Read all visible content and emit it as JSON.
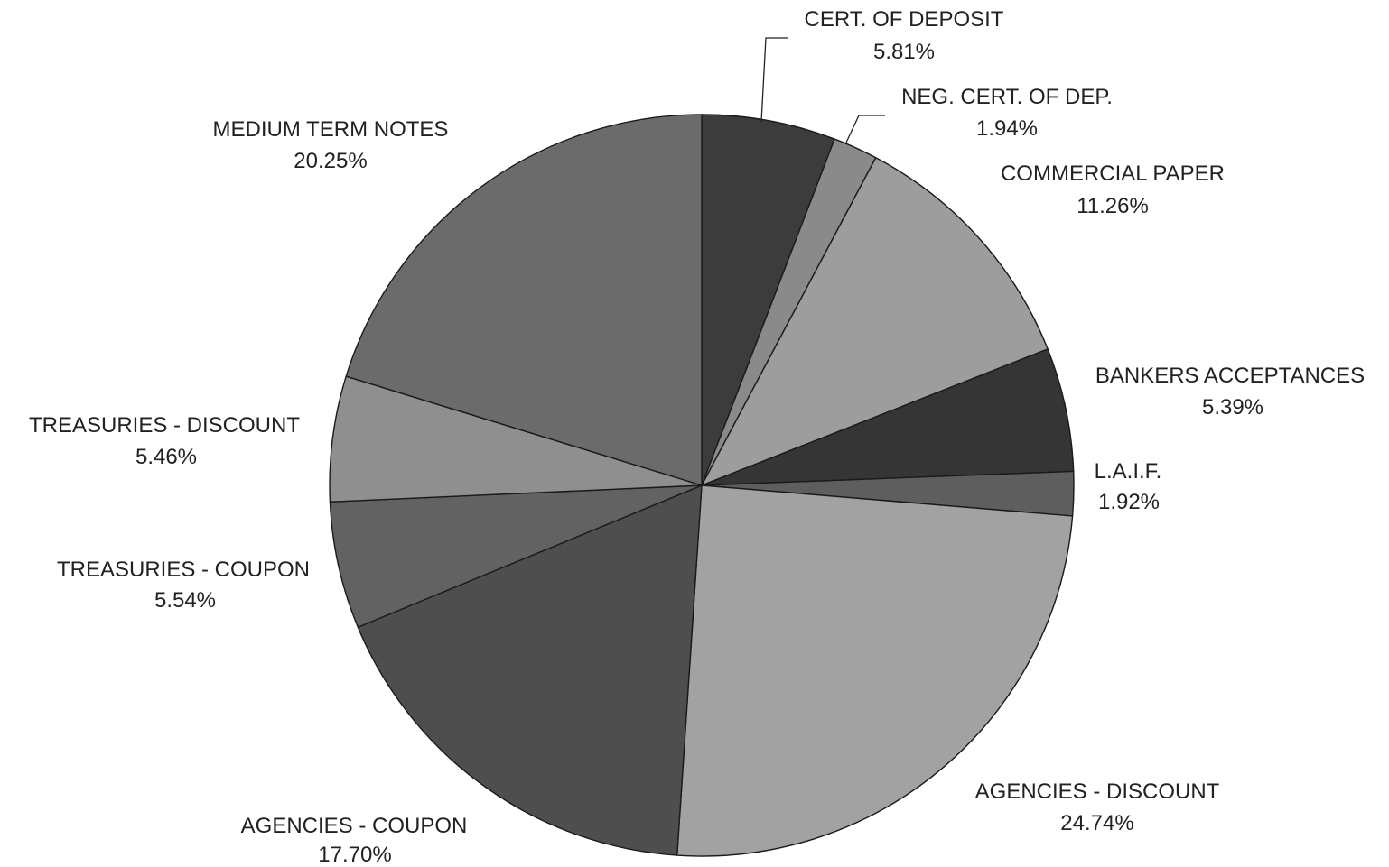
{
  "chart_data": {
    "type": "pie",
    "slices": [
      {
        "label": "CERT. OF DEPOSIT",
        "value": 5.81,
        "value_label": "5.81%",
        "color": "#3c3c3c"
      },
      {
        "label": "NEG. CERT. OF DEP.",
        "value": 1.94,
        "value_label": "1.94%",
        "color": "#8a8a8a"
      },
      {
        "label": "COMMERCIAL PAPER",
        "value": 11.26,
        "value_label": "11.26%",
        "color": "#9d9d9d"
      },
      {
        "label": "BANKERS ACCEPTANCES",
        "value": 5.39,
        "value_label": "5.39%",
        "color": "#353535"
      },
      {
        "label": "L.A.I.F.",
        "value": 1.92,
        "value_label": "1.92%",
        "color": "#5e5e5e"
      },
      {
        "label": "AGENCIES - DISCOUNT",
        "value": 24.74,
        "value_label": "24.74%",
        "color": "#a2a2a2"
      },
      {
        "label": "AGENCIES - COUPON",
        "value": 17.7,
        "value_label": "17.70%",
        "color": "#4e4e4e"
      },
      {
        "label": "TREASURIES - COUPON",
        "value": 5.54,
        "value_label": "5.54%",
        "color": "#626262"
      },
      {
        "label": "TREASURIES - DISCOUNT",
        "value": 5.46,
        "value_label": "5.46%",
        "color": "#8f8f8f"
      },
      {
        "label": "MEDIUM TERM NOTES",
        "value": 20.25,
        "value_label": "20.25%",
        "color": "#6b6b6b"
      }
    ],
    "start": "top",
    "direction": "clockwise",
    "legend": "none",
    "data_labels": "outside"
  }
}
